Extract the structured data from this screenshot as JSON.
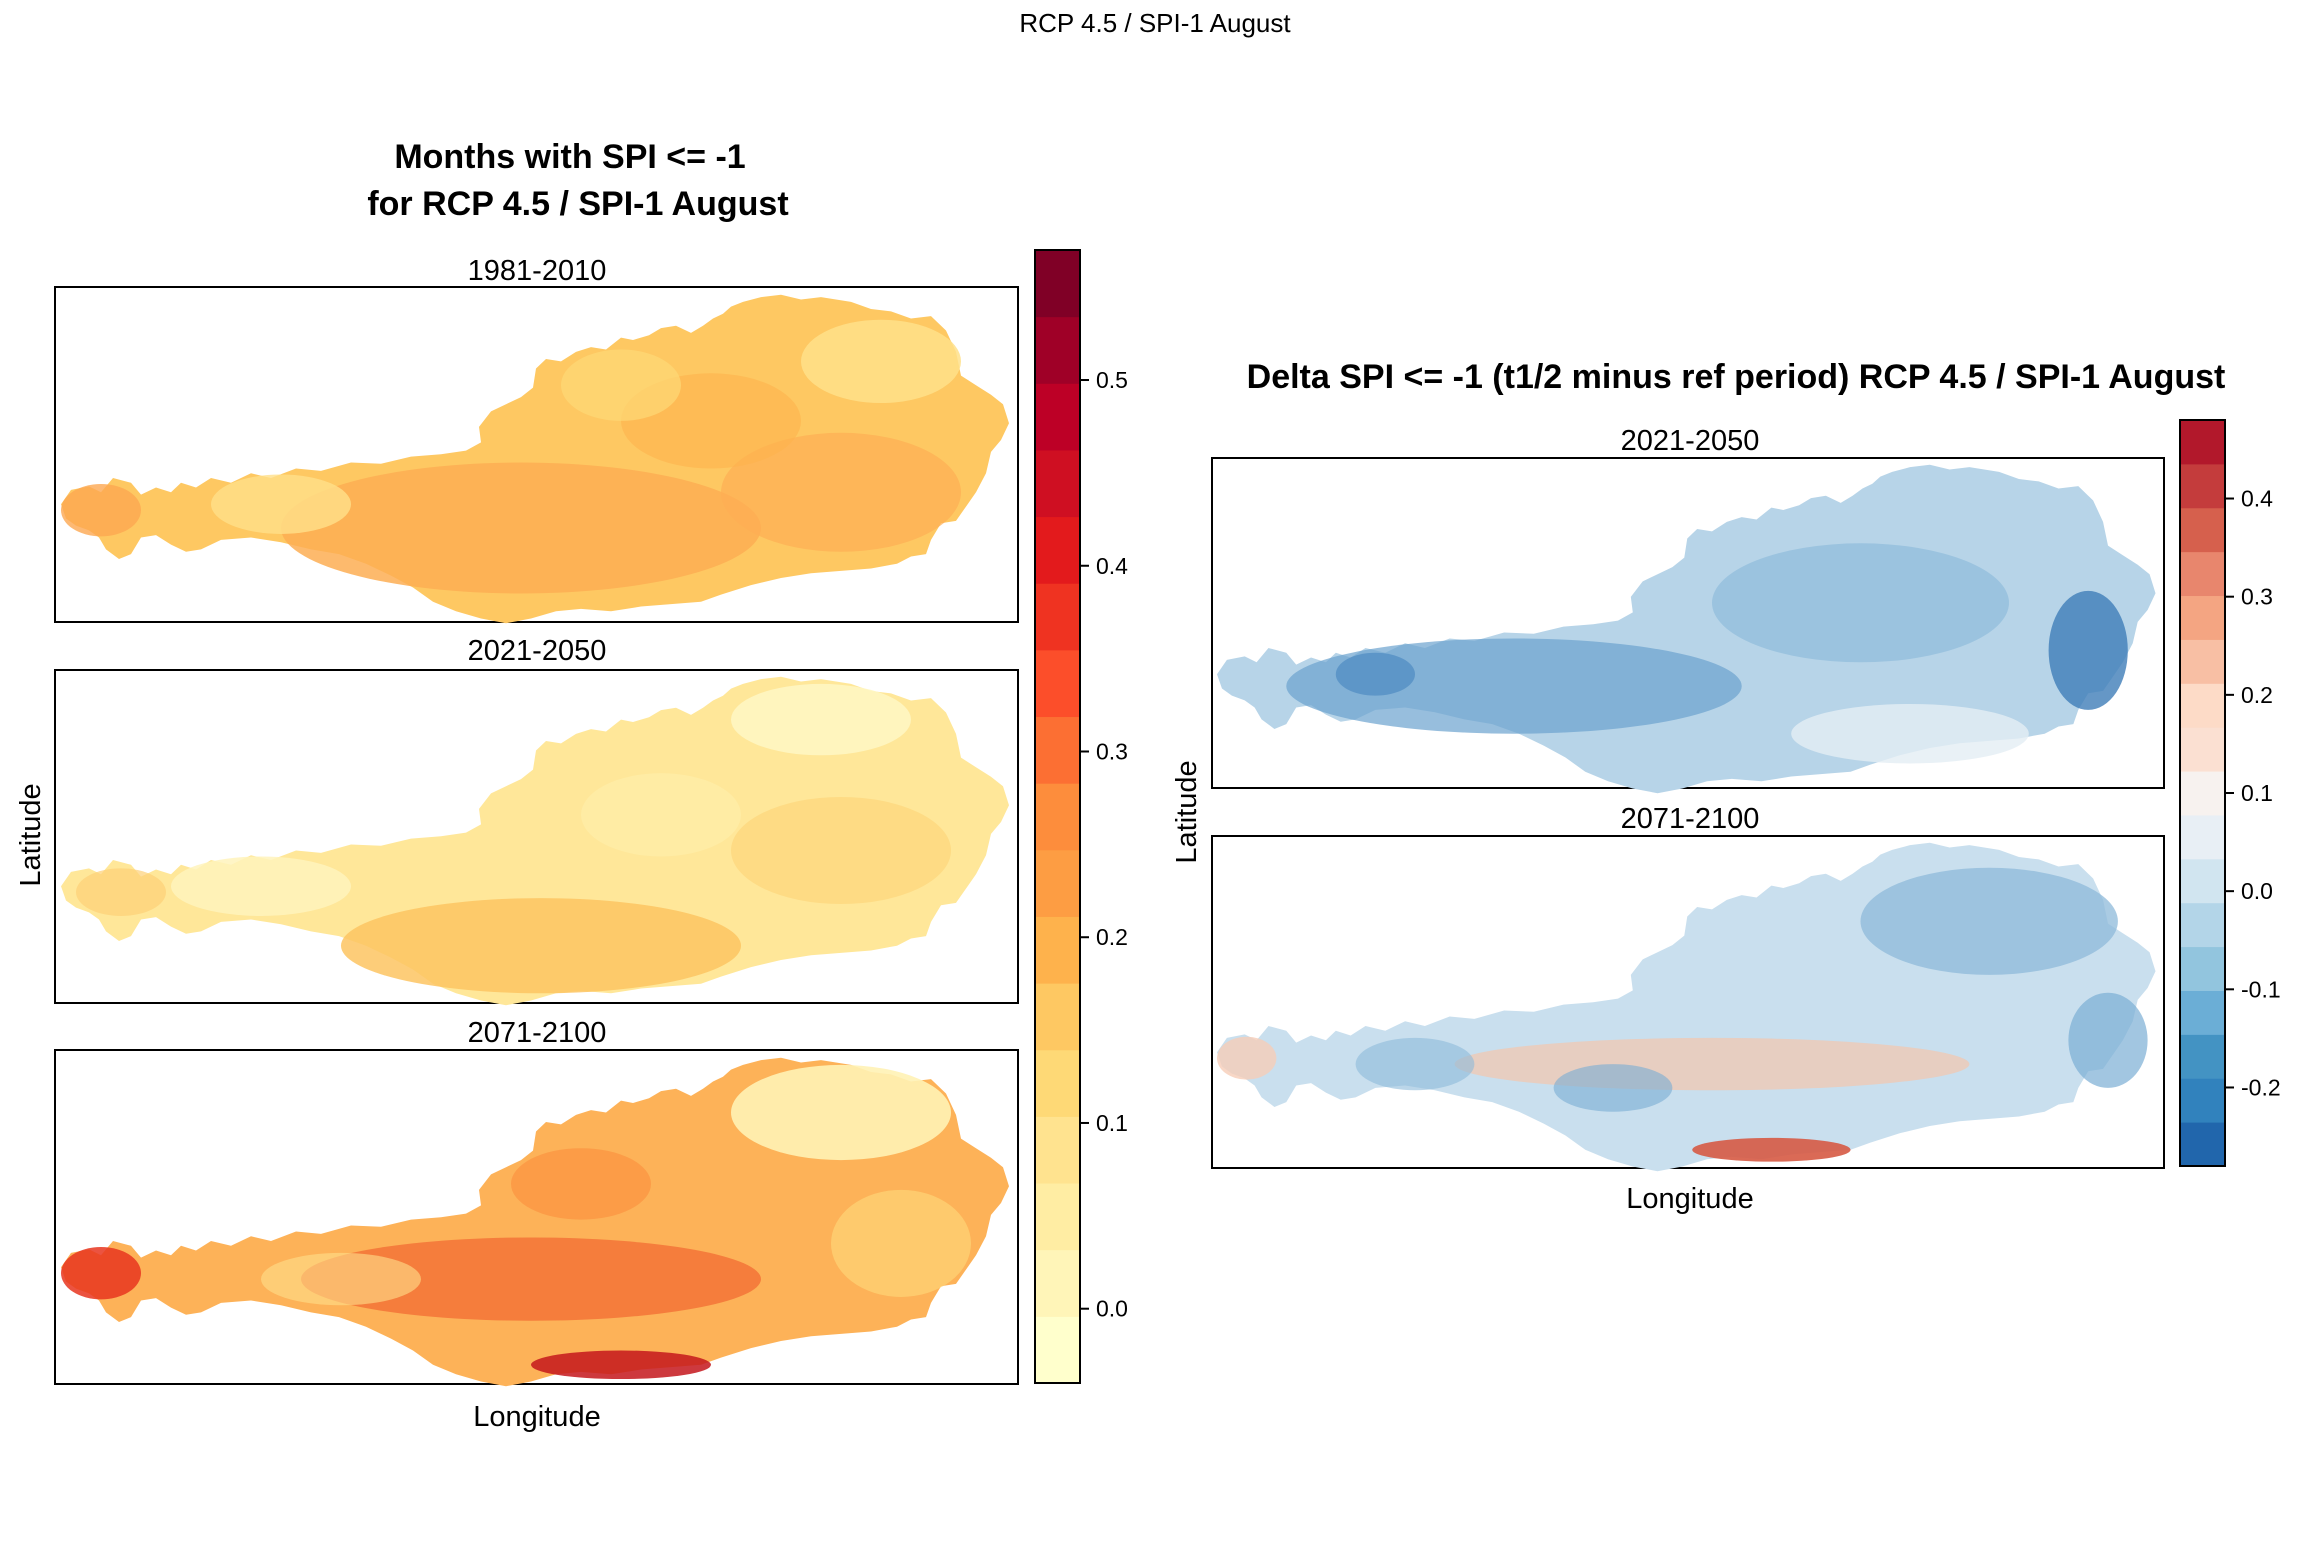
{
  "page_title": "RCP 4.5 / SPI-1 August",
  "left": {
    "title_line1": "Months with SPI <= -1",
    "title_line2": "for RCP 4.5 / SPI-1 August",
    "xlabel": "Longitude",
    "ylabel": "Latitude",
    "panels": [
      {
        "label": "1981-2010"
      },
      {
        "label": "2021-2050"
      },
      {
        "label": "2071-2100"
      }
    ]
  },
  "right": {
    "title": "Delta SPI <= -1 (t1/2 minus ref period) RCP 4.5 / SPI-1 August",
    "xlabel": "Longitude",
    "ylabel": "Latitude",
    "panels": [
      {
        "label": "2021-2050"
      },
      {
        "label": "2071-2100"
      }
    ]
  },
  "chart_data": [
    {
      "type": "heatmap",
      "title": "Months with SPI <= -1 for RCP 4.5 / SPI-1 August",
      "xlabel": "Longitude",
      "ylabel": "Latitude",
      "panels": [
        "1981-2010",
        "2021-2050",
        "2071-2100"
      ],
      "colorbar": {
        "min": -0.04,
        "max": 0.57,
        "ticks": [
          0.0,
          0.1,
          0.2,
          0.3,
          0.4,
          0.5
        ],
        "tick_labels": [
          "0.0",
          "0.1",
          "0.2",
          "0.3",
          "0.4",
          "0.5"
        ],
        "colors": [
          "#FFFFCC",
          "#FFF5B8",
          "#FFEDA3",
          "#FFE38F",
          "#FED976",
          "#FEC862",
          "#FEB24C",
          "#FD9D43",
          "#FD8D3C",
          "#FC6F33",
          "#FC4E2A",
          "#EF3321",
          "#E31A1C",
          "#CF0F22",
          "#BD0026",
          "#9F0027",
          "#800026"
        ]
      },
      "panel_summary": [
        {
          "period": "1981-2010",
          "dominant_range": [
            0.1,
            0.25
          ]
        },
        {
          "period": "2021-2050",
          "dominant_range": [
            0.0,
            0.15
          ]
        },
        {
          "period": "2071-2100",
          "dominant_range": [
            0.05,
            0.45
          ]
        }
      ]
    },
    {
      "type": "heatmap",
      "title": "Delta SPI <= -1 (t1/2 minus ref period) RCP 4.5 / SPI-1 August",
      "xlabel": "Longitude",
      "ylabel": "Latitude",
      "panels": [
        "2021-2050",
        "2071-2100"
      ],
      "colorbar": {
        "min": -0.28,
        "max": 0.48,
        "ticks": [
          -0.2,
          -0.1,
          0.0,
          0.1,
          0.2,
          0.3,
          0.4
        ],
        "tick_labels": [
          "-0.2",
          "-0.1",
          "0.0",
          "0.1",
          "0.2",
          "0.3",
          "0.4"
        ],
        "colors": [
          "#2166AC",
          "#3182BD",
          "#4393C3",
          "#6BAED6",
          "#92C5DE",
          "#B3D5E8",
          "#D1E5F0",
          "#E8EFF5",
          "#F7F2EF",
          "#FBE0D2",
          "#FDDBC7",
          "#F8BFA4",
          "#F4A582",
          "#E8866D",
          "#D6604D",
          "#C43C3C",
          "#B2182B"
        ]
      },
      "panel_summary": [
        {
          "period": "2021-2050",
          "dominant_range": [
            -0.2,
            0.05
          ]
        },
        {
          "period": "2071-2100",
          "dominant_range": [
            -0.2,
            0.3
          ]
        }
      ]
    }
  ]
}
